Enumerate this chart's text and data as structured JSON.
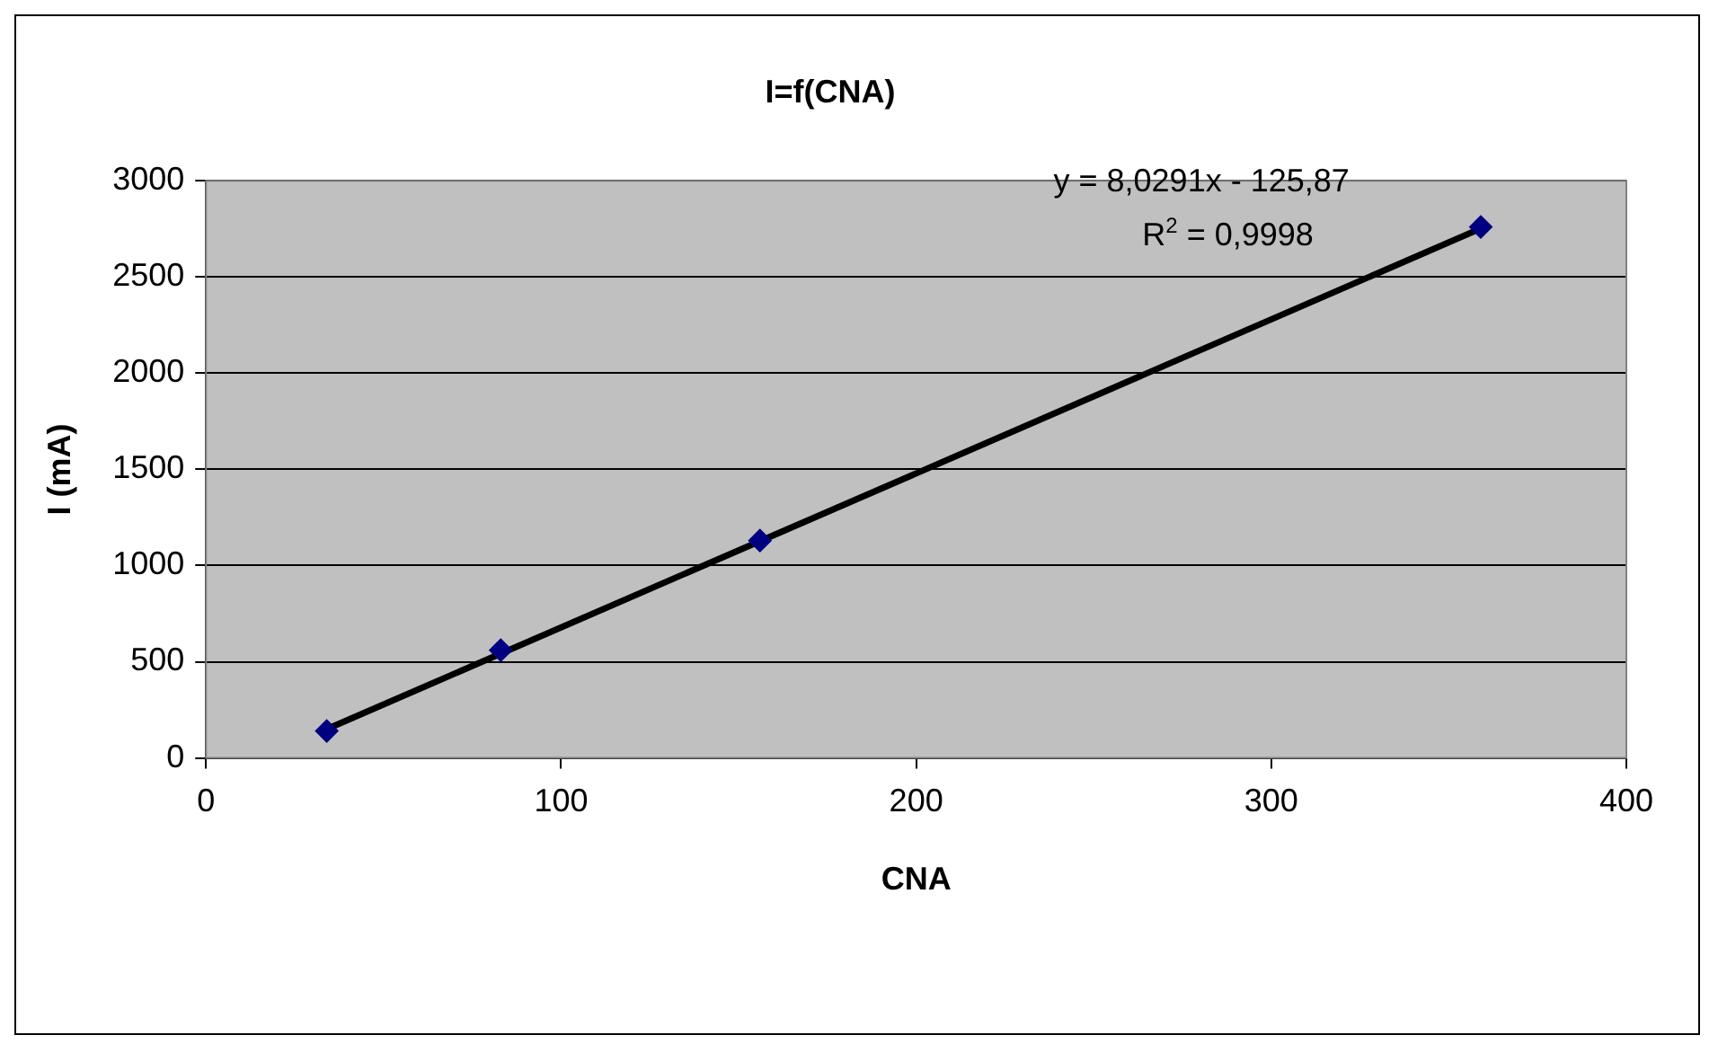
{
  "chart_data": {
    "type": "scatter",
    "title": "I=f(CNA)",
    "xlabel": "CNA",
    "ylabel": "I (mA)",
    "series": [
      {
        "color": "#000080",
        "marker": "diamond",
        "x": [
          34,
          83,
          156,
          359
        ],
        "values": [
          140,
          560,
          1130,
          2760
        ]
      },
      {
        "type": "line",
        "color": "#000000",
        "marker": "none",
        "x": [
          34,
          360
        ],
        "values": [
          150,
          2760
        ]
      }
    ],
    "xlim": [
      0,
      400
    ],
    "xticks": [
      0,
      100,
      200,
      300,
      400
    ],
    "ylim": [
      0,
      3000
    ],
    "yticks": [
      0,
      500,
      1000,
      1500,
      2000,
      2500,
      3000
    ],
    "grid": "y",
    "legend": false,
    "annotations": [
      "y = 8,0291x - 125,87",
      "R$^{2}$ = 0,9998"
    ]
  }
}
